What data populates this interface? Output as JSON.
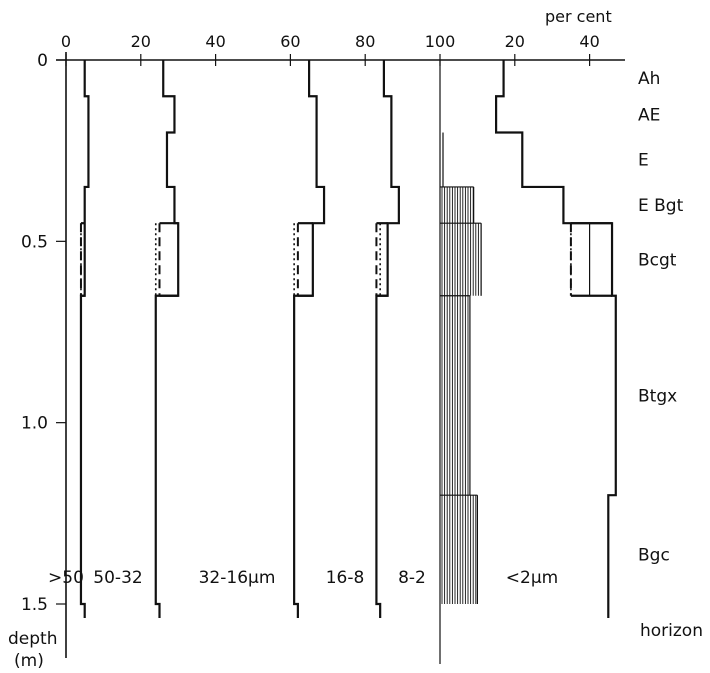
{
  "chart_data": {
    "type": "area",
    "title": "",
    "top_axis": {
      "unit": "per cent",
      "ticks_left": [
        "0",
        "20",
        "40",
        "60",
        "80",
        "100"
      ],
      "ticks_right": [
        "20",
        "40"
      ]
    },
    "y_axis": {
      "label": "depth",
      "unit": "(m)",
      "ylim": [
        0,
        1.5
      ],
      "ticks": [
        "0",
        "0.5",
        "1.0",
        "1.5"
      ]
    },
    "x_axis_scale_note": "left panel: cumulative per cent 0–100; right panel: clay per cent measured from 100 line",
    "depth_boundaries": [
      0,
      0.1,
      0.2,
      0.35,
      0.45,
      0.65,
      1.2,
      1.5
    ],
    "horizons": [
      {
        "name": "Ah",
        "top": 0,
        "bottom": 0.1
      },
      {
        "name": "AE",
        "top": 0.1,
        "bottom": 0.2
      },
      {
        "name": "E",
        "top": 0.2,
        "bottom": 0.35
      },
      {
        "name": "E Bgt",
        "top": 0.35,
        "bottom": 0.45
      },
      {
        "name": "Bcgt",
        "top": 0.45,
        "bottom": 0.65
      },
      {
        "name": "Btgx",
        "top": 0.65,
        "bottom": 1.2
      },
      {
        "name": "Bgc",
        "top": 1.2,
        "bottom": 1.5
      }
    ],
    "horizon_column_label": "horizon",
    "fraction_labels": [
      ">50",
      "50-32",
      "32-16µm",
      "16-8",
      "8-2",
      "<2µm"
    ],
    "series": [
      {
        "values": [
          5,
          6,
          6,
          5,
          5,
          4,
          4,
          5
        ]
      },
      {
        "values": [
          26,
          29,
          27,
          29,
          30,
          24,
          24,
          25
        ]
      },
      {
        "values": [
          65,
          67,
          67,
          69,
          66,
          61,
          61,
          62
        ]
      },
      {
        "values": [
          85,
          87,
          87,
          89,
          86,
          83,
          83,
          84
        ]
      },
      {
        "values": [
          17,
          15,
          22,
          33,
          46,
          47,
          45,
          45
        ]
      }
    ],
    "bcgt_variant_lines": {
      "dashed": [
        4,
        25,
        62,
        83,
        35
      ],
      "dotted": [
        4,
        24,
        61,
        84,
        40
      ]
    },
    "grid": false,
    "legend": "none"
  }
}
